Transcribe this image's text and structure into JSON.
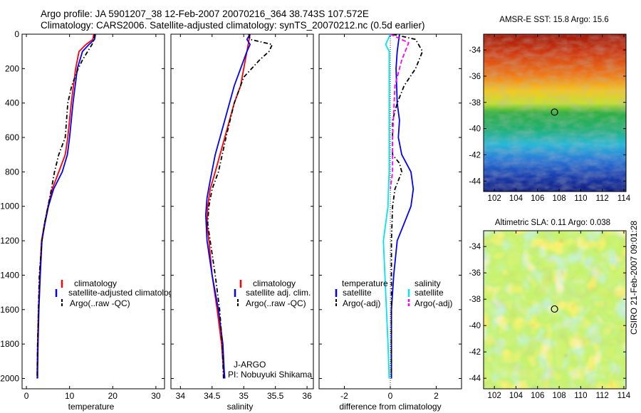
{
  "header": {
    "title_line1": "Argo profile: JA 5901207_38 12-Feb-2007 20070216_364 38.743S 107.572E",
    "title_line2": "Climatology: CARS2006. Satellite-adjusted climatology: synTS_20070212.nc (0.5d earlier)"
  },
  "credit": "CSIRO 21-Feb-2007 09:01:28",
  "colors": {
    "climatology": "#ff0000",
    "satellite": "#0000ff",
    "argo": "#000000",
    "sat_salinity": "#00e5ee",
    "argo_salinity": "#ff00ff"
  },
  "chart_data": [
    {
      "type": "line",
      "panel": "temperature",
      "xlabel": "temperature",
      "ylabel": "",
      "xlim": [
        -1,
        32
      ],
      "ylim": [
        0,
        2060
      ],
      "xticks": [
        0,
        10,
        20,
        30
      ],
      "yticks": [
        0,
        200,
        400,
        600,
        800,
        1000,
        1200,
        1400,
        1600,
        1800,
        2000
      ],
      "y_reversed": true,
      "legend": [
        "climatology",
        "satellite-adjusted climatolog",
        "Argo(..raw -QC)"
      ],
      "series": [
        {
          "name": "climatology",
          "style": "solid",
          "color": "#ff0000",
          "x": [
            15.6,
            15.4,
            13.8,
            12.2,
            11.4,
            10.4,
            9.6,
            9.0,
            7.5,
            6.0,
            5.0,
            4.2,
            3.5,
            3.1,
            2.8,
            2.6,
            2.5,
            2.5
          ],
          "y": [
            0,
            30,
            60,
            100,
            200,
            400,
            600,
            700,
            800,
            900,
            1000,
            1100,
            1200,
            1400,
            1600,
            1800,
            1950,
            2000
          ]
        },
        {
          "name": "satellite-adjusted climatolog",
          "style": "solid",
          "color": "#0000ff",
          "x": [
            16.0,
            15.8,
            14.5,
            13.0,
            11.8,
            10.8,
            10.0,
            9.5,
            8.3,
            6.3,
            5.1,
            4.3,
            3.6,
            3.2,
            2.9,
            2.7,
            2.6,
            2.6
          ],
          "y": [
            0,
            30,
            60,
            100,
            200,
            400,
            600,
            700,
            800,
            900,
            1000,
            1100,
            1200,
            1400,
            1600,
            1800,
            1950,
            2000
          ]
        },
        {
          "name": "Argo(..raw -QC)",
          "style": "dashdot",
          "color": "#000000",
          "x": [
            15.8,
            15.7,
            15.2,
            14.2,
            13.0,
            12.0,
            10.5,
            9.6,
            9.0,
            7.5,
            6.5,
            5.8,
            5.0,
            4.2,
            3.6,
            3.0,
            2.8,
            2.6,
            2.5
          ],
          "y": [
            0,
            30,
            60,
            100,
            150,
            200,
            300,
            400,
            600,
            700,
            800,
            900,
            1000,
            1100,
            1200,
            1400,
            1600,
            1800,
            2000
          ]
        }
      ]
    },
    {
      "type": "line",
      "panel": "salinity",
      "xlabel": "salinity",
      "ylabel": "",
      "xlim": [
        33.85,
        36.1
      ],
      "ylim": [
        0,
        2060
      ],
      "xticks": [
        34,
        34.5,
        35,
        35.5,
        36
      ],
      "yticks": [
        0,
        200,
        400,
        600,
        800,
        1000,
        1200,
        1400,
        1600,
        1800,
        2000
      ],
      "y_reversed": true,
      "legend": [
        "climatology",
        "satellite adj. clim.",
        "Argo(..raw -QC)"
      ],
      "annotations": [
        "J-ARGO",
        "PI: Nobuyuki Shikama"
      ],
      "series": [
        {
          "name": "climatology",
          "style": "solid",
          "color": "#ff0000",
          "x": [
            35.1,
            35.05,
            35.0,
            34.95,
            34.85,
            34.7,
            34.55,
            34.47,
            34.43,
            34.42,
            34.45,
            34.5,
            34.58,
            34.65,
            34.68,
            34.69
          ],
          "y": [
            0,
            100,
            200,
            300,
            400,
            600,
            800,
            900,
            1000,
            1100,
            1200,
            1400,
            1600,
            1800,
            1950,
            2000
          ]
        },
        {
          "name": "satellite adj. clim.",
          "style": "solid",
          "color": "#0000ff",
          "x": [
            35.1,
            35.05,
            35.1,
            35.05,
            34.95,
            34.85,
            34.7,
            34.55,
            34.47,
            34.42,
            34.4,
            34.42,
            34.5,
            34.6,
            34.67,
            34.69,
            34.7
          ],
          "y": [
            0,
            30,
            60,
            100,
            200,
            300,
            500,
            700,
            850,
            950,
            1050,
            1200,
            1400,
            1600,
            1800,
            1950,
            2000
          ]
        },
        {
          "name": "Argo(..raw -QC)",
          "style": "dashdot",
          "color": "#000000",
          "x": [
            35.08,
            35.1,
            35.45,
            35.4,
            35.25,
            35.0,
            34.85,
            34.72,
            34.6,
            34.5,
            34.45,
            34.43,
            34.47,
            34.55,
            34.62,
            34.66,
            34.68
          ],
          "y": [
            0,
            30,
            60,
            100,
            150,
            250,
            400,
            600,
            800,
            900,
            1000,
            1100,
            1200,
            1400,
            1600,
            1800,
            2000
          ]
        }
      ]
    },
    {
      "type": "line",
      "panel": "difference",
      "xlabel": "difference from climatology",
      "ylabel": "",
      "xlim": [
        -3.1,
        3.1
      ],
      "ylim": [
        0,
        2060
      ],
      "xticks": [
        -2,
        0,
        2
      ],
      "yticks": [
        0,
        200,
        400,
        600,
        800,
        1000,
        1200,
        1400,
        1600,
        1800,
        2000
      ],
      "y_reversed": true,
      "legend_headers": [
        "temperature",
        "salinity"
      ],
      "legend": [
        "satellite",
        "Argo(-adj)",
        "satellite",
        "Argo(-adj)"
      ],
      "series": [
        {
          "name": "satellite",
          "group": "temperature",
          "style": "solid",
          "color": "#0000ff",
          "x": [
            0.4,
            0.3,
            0.25,
            0.3,
            0.4,
            0.35,
            0.5,
            0.9,
            1.0,
            0.9,
            0.6,
            0.3,
            0.15,
            0.05,
            0.05,
            0.05
          ],
          "y": [
            0,
            100,
            200,
            400,
            500,
            600,
            700,
            800,
            900,
            1000,
            1100,
            1200,
            1400,
            1600,
            1800,
            2000
          ]
        },
        {
          "name": "Argo(-adj)",
          "group": "temperature",
          "style": "dashdot",
          "color": "#000000",
          "x": [
            0.1,
            1.1,
            1.4,
            1.1,
            0.6,
            0.3,
            0.1,
            0.1,
            0.4,
            0.5,
            0.2,
            0.1,
            0.05,
            0.05
          ],
          "y": [
            0,
            30,
            100,
            200,
            300,
            400,
            500,
            700,
            750,
            800,
            900,
            1000,
            1200,
            2000
          ]
        },
        {
          "name": "satellite",
          "group": "salinity",
          "style": "solid",
          "color": "#00e5ee",
          "x": [
            0.0,
            -0.2,
            -0.05,
            -0.05,
            -0.05,
            -0.08,
            -0.1,
            -0.2,
            -0.3,
            -0.2,
            -0.1,
            -0.05
          ],
          "y": [
            0,
            60,
            100,
            400,
            800,
            900,
            1000,
            1100,
            1200,
            1500,
            1800,
            2000
          ]
        },
        {
          "name": "Argo(-adj)",
          "group": "salinity",
          "style": "dashed",
          "color": "#ff00ff",
          "x": [
            0.0,
            0.8,
            0.5,
            0.4,
            0.2,
            0.1,
            0.1,
            0.0
          ],
          "y": [
            0,
            50,
            150,
            200,
            300,
            600,
            800,
            900
          ]
        }
      ]
    },
    {
      "type": "heatmap",
      "panel": "sst-map",
      "title": "AMSR-E SST: 15.8 Argo: 15.6",
      "xlim": [
        101,
        114.2
      ],
      "ylim": [
        -44.8,
        -32.8
      ],
      "xticks": [
        102,
        104,
        106,
        108,
        110,
        112,
        114
      ],
      "yticks": [
        -34,
        -36,
        -38,
        -40,
        -42,
        -44
      ],
      "argo_position": {
        "lon": 107.572,
        "lat": -38.743
      }
    },
    {
      "type": "heatmap",
      "panel": "sla-map",
      "title": "Altimetric SLA: 0.11 Argo: 0.038",
      "xlim": [
        101,
        114.2
      ],
      "ylim": [
        -44.8,
        -32.8
      ],
      "xticks": [
        102,
        104,
        106,
        108,
        110,
        112,
        114
      ],
      "yticks": [
        -34,
        -36,
        -38,
        -40,
        -42,
        -44
      ],
      "argo_position": {
        "lon": 107.572,
        "lat": -38.743
      }
    }
  ]
}
